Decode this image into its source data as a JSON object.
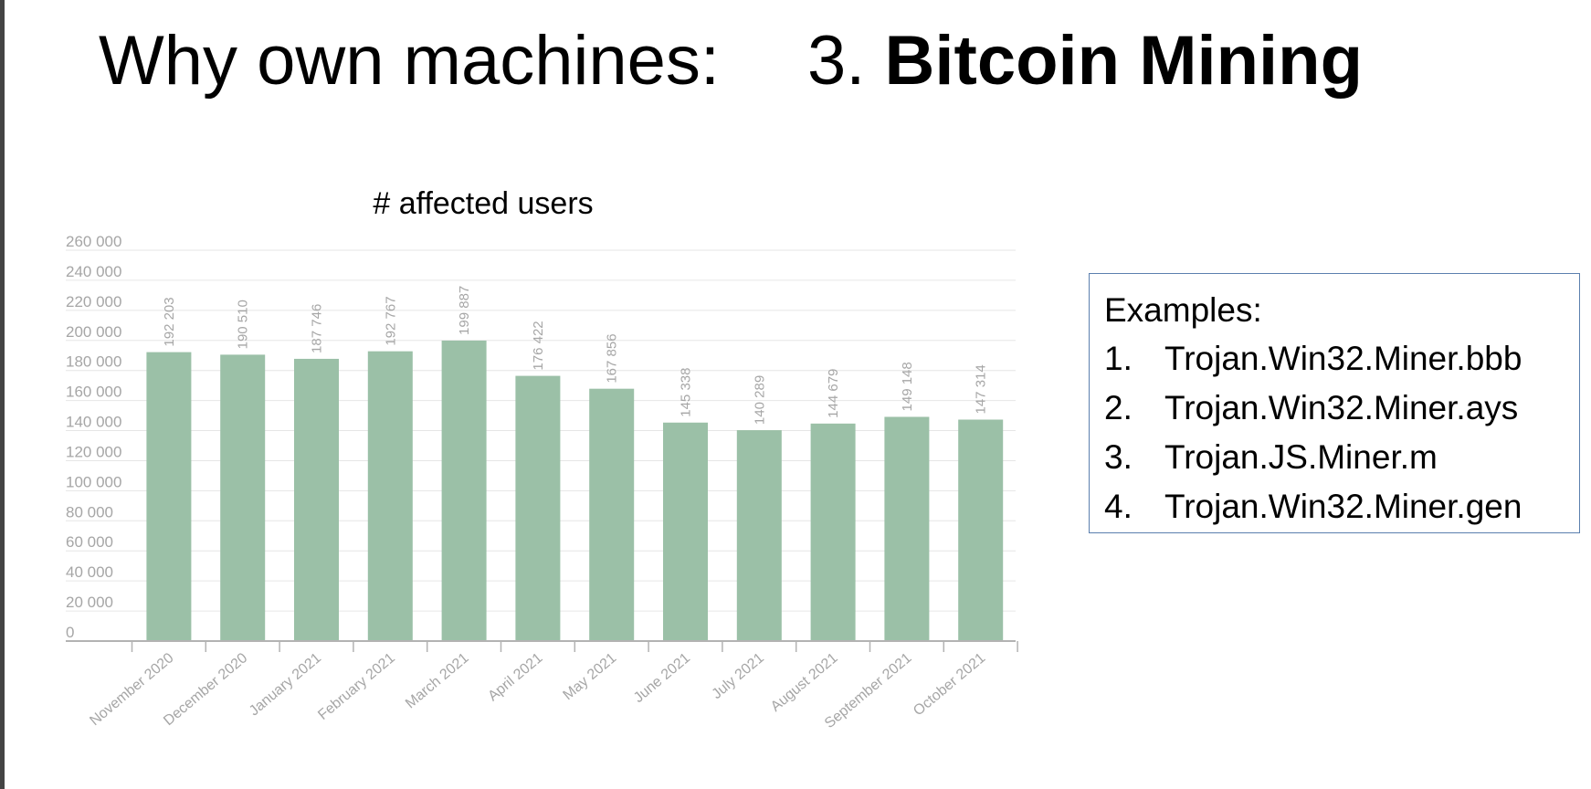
{
  "slide": {
    "title_prefix": "Why own machines:",
    "title_number": "3.",
    "title_topic": "Bitcoin Mining"
  },
  "examples": {
    "heading": "Examples:",
    "items": [
      {
        "index": "1.",
        "text": "Trojan.Win32.Miner.bbb"
      },
      {
        "index": "2.",
        "text": "Trojan.Win32.Miner.ays"
      },
      {
        "index": "3.",
        "text": "Trojan.JS.Miner.m"
      },
      {
        "index": "4.",
        "text": "Trojan.Win32.Miner.gen"
      }
    ]
  },
  "chart_data": {
    "type": "bar",
    "title": "# affected users",
    "categories": [
      "November 2020",
      "December 2020",
      "January 2021",
      "February 2021",
      "March 2021",
      "April 2021",
      "May 2021",
      "June 2021",
      "July 2021",
      "August 2021",
      "September 2021",
      "October 2021"
    ],
    "values": [
      192203,
      190510,
      187746,
      192767,
      199887,
      176422,
      167856,
      145338,
      140289,
      144679,
      149148,
      147314
    ],
    "value_labels": [
      "192 203",
      "190 510",
      "187 746",
      "192 767",
      "199 887",
      "176 422",
      "167 856",
      "145 338",
      "140 289",
      "144 679",
      "149 148",
      "147 314"
    ],
    "y_ticks": [
      0,
      20000,
      40000,
      60000,
      80000,
      100000,
      120000,
      140000,
      160000,
      180000,
      200000,
      220000,
      240000,
      260000
    ],
    "y_tick_labels": [
      "0",
      "20 000",
      "40 000",
      "60 000",
      "80 000",
      "100 000",
      "120 000",
      "140 000",
      "160 000",
      "180 000",
      "200 000",
      "220 000",
      "240 000",
      "260 000"
    ],
    "ylim": [
      0,
      260000
    ],
    "grid": true,
    "bar_color": "#9bc0a7",
    "label_color": "#a6a6a6"
  }
}
